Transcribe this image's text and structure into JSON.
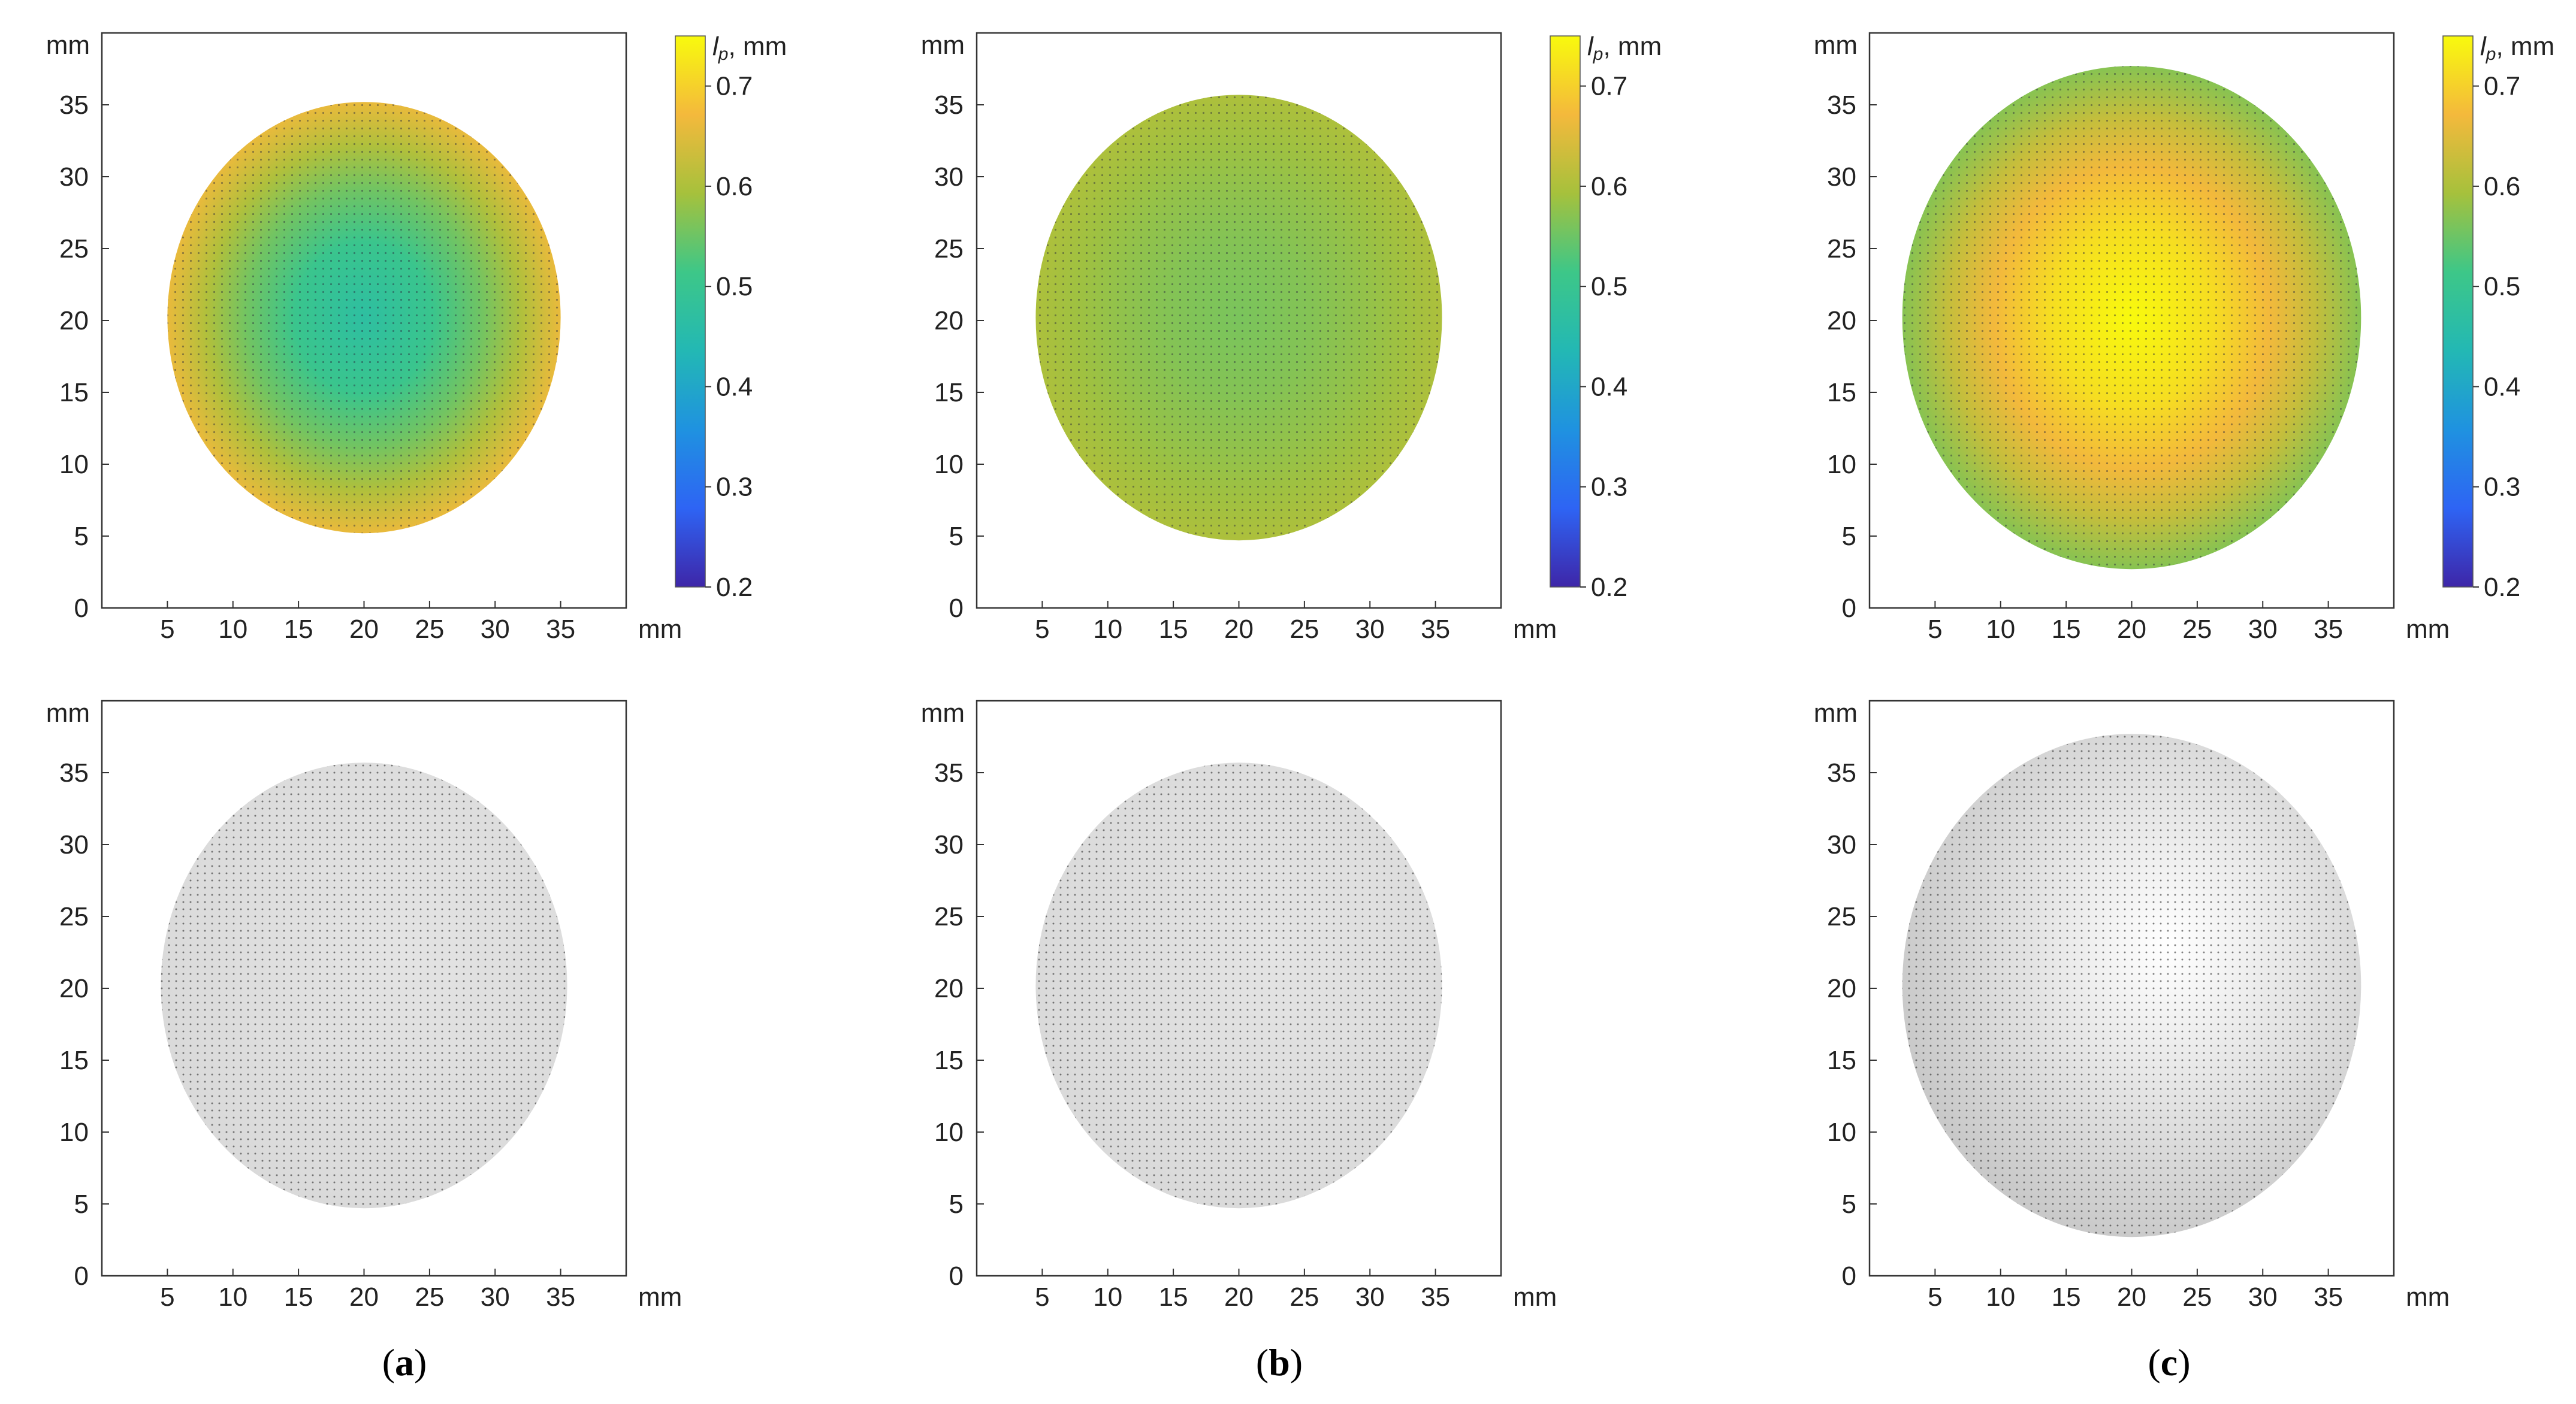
{
  "chart_data": [
    {
      "type": "heatmap",
      "panel": "a",
      "row": "top",
      "xlabel": "mm",
      "ylabel": "mm",
      "xticks": [
        5,
        10,
        15,
        20,
        25,
        30,
        35
      ],
      "yticks": [
        0,
        5,
        10,
        15,
        20,
        25,
        30,
        35
      ],
      "xlim": [
        0,
        40
      ],
      "ylim": [
        0,
        40
      ],
      "disk": {
        "cx": 20.0,
        "cy": 20.2,
        "r": 15.0
      },
      "center_value": 0.47,
      "edge_value": 0.66,
      "colorbar": {
        "label": "l_p, mm",
        "ticks": [
          0.2,
          0.3,
          0.4,
          0.5,
          0.6,
          0.7
        ],
        "range": [
          0.2,
          0.75
        ]
      }
    },
    {
      "type": "heatmap",
      "panel": "b",
      "row": "top",
      "xlabel": "mm",
      "ylabel": "mm",
      "xticks": [
        5,
        10,
        15,
        20,
        25,
        30,
        35
      ],
      "yticks": [
        0,
        5,
        10,
        15,
        20,
        25,
        30,
        35
      ],
      "xlim": [
        0,
        40
      ],
      "ylim": [
        0,
        40
      ],
      "disk": {
        "cx": 20.0,
        "cy": 20.2,
        "r": 15.5
      },
      "center_value": 0.56,
      "edge_value": 0.6,
      "colorbar": {
        "label": "l_p, mm",
        "ticks": [
          0.2,
          0.3,
          0.4,
          0.5,
          0.6,
          0.7
        ],
        "range": [
          0.2,
          0.75
        ]
      }
    },
    {
      "type": "heatmap",
      "panel": "c",
      "row": "top",
      "xlabel": "mm",
      "ylabel": "mm",
      "xticks": [
        5,
        10,
        15,
        20,
        25,
        30,
        35
      ],
      "yticks": [
        0,
        5,
        10,
        15,
        20,
        25,
        30,
        35
      ],
      "xlim": [
        0,
        40
      ],
      "ylim": [
        0,
        40
      ],
      "disk": {
        "cx": 20.0,
        "cy": 20.2,
        "r": 17.5
      },
      "center_value": 0.75,
      "edge_value": 0.57,
      "colorbar": {
        "label": "l_p, mm",
        "ticks": [
          0.2,
          0.3,
          0.4,
          0.5,
          0.6,
          0.7
        ],
        "range": [
          0.2,
          0.75
        ]
      }
    },
    {
      "type": "scatter",
      "panel": "a",
      "row": "bottom",
      "xlabel": "mm",
      "ylabel": "mm",
      "xticks": [
        5,
        10,
        15,
        20,
        25,
        30,
        35
      ],
      "yticks": [
        0,
        5,
        10,
        15,
        20,
        25,
        30,
        35
      ],
      "xlim": [
        0,
        40
      ],
      "ylim": [
        0,
        40
      ],
      "disk": {
        "cx": 20.0,
        "cy": 20.2,
        "r": 15.5
      }
    },
    {
      "type": "scatter",
      "panel": "b",
      "row": "bottom",
      "xlabel": "mm",
      "ylabel": "mm",
      "xticks": [
        5,
        10,
        15,
        20,
        25,
        30,
        35
      ],
      "yticks": [
        0,
        5,
        10,
        15,
        20,
        25,
        30,
        35
      ],
      "xlim": [
        0,
        40
      ],
      "ylim": [
        0,
        40
      ],
      "disk": {
        "cx": 20.0,
        "cy": 20.2,
        "r": 15.5
      }
    },
    {
      "type": "scatter",
      "panel": "c",
      "row": "bottom",
      "xlabel": "mm",
      "ylabel": "mm",
      "xticks": [
        5,
        10,
        15,
        20,
        25,
        30,
        35
      ],
      "yticks": [
        0,
        5,
        10,
        15,
        20,
        25,
        30,
        35
      ],
      "xlim": [
        0,
        40
      ],
      "ylim": [
        0,
        40
      ],
      "disk": {
        "cx": 20.0,
        "cy": 20.2,
        "r": 17.5
      }
    }
  ],
  "colormap": [
    "#3e26a8",
    "#2e64f4",
    "#1f92e0",
    "#23b8b4",
    "#3dc788",
    "#a6c13c",
    "#f4b93c",
    "#f8fa0d"
  ],
  "captions": {
    "a": "a",
    "b": "b",
    "c": "c"
  },
  "cb_label_main": "l",
  "cb_label_sub": "p",
  "cb_label_rest": ", mm"
}
